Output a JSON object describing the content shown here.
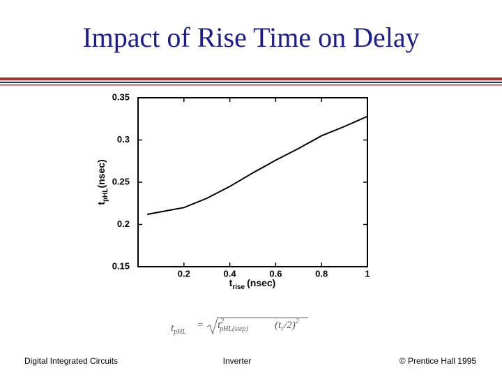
{
  "header": {
    "title": "Impact of Rise Time on Delay"
  },
  "chart_data": {
    "type": "line",
    "xlabel": {
      "symbol": "t",
      "subscript": "rise",
      "unit": "(nsec)"
    },
    "ylabel": {
      "symbol": "t",
      "subscript": "pHL",
      "unit": "(nsec)"
    },
    "x": [
      0.04,
      0.1,
      0.2,
      0.3,
      0.4,
      0.5,
      0.6,
      0.7,
      0.8,
      0.9,
      1.0
    ],
    "series": [
      {
        "color": "#000000",
        "values": [
          0.212,
          0.215,
          0.22,
          0.231,
          0.245,
          0.261,
          0.276,
          0.29,
          0.305,
          0.316,
          0.328
        ]
      }
    ],
    "xlim": [
      0,
      1
    ],
    "xticks": [
      0.2,
      0.4,
      0.6,
      0.8,
      1
    ],
    "ylim": [
      0.15,
      0.35
    ],
    "yticks": [
      0.15,
      0.2,
      0.25,
      0.3,
      0.35
    ],
    "grid": false
  },
  "formula": {
    "lhs": "t",
    "lhs_sub": "pHL",
    "eq": "=",
    "term1": "t",
    "term1_sup": "2",
    "term1_sub": "pHL(step)",
    "term2": "(t",
    "term2_sub": "r",
    "term2_rest": "/2)",
    "term2_sup": "2"
  },
  "footer": {
    "left": "Digital Integrated Circuits",
    "center": "Inverter",
    "right": "© Prentice Hall 1995"
  }
}
